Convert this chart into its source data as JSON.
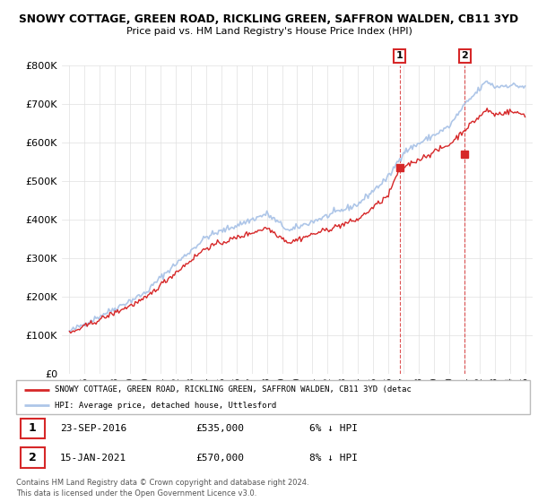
{
  "title1": "SNOWY COTTAGE, GREEN ROAD, RICKLING GREEN, SAFFRON WALDEN, CB11 3YD",
  "title2": "Price paid vs. HM Land Registry's House Price Index (HPI)",
  "ytick_values": [
    0,
    100000,
    200000,
    300000,
    400000,
    500000,
    600000,
    700000,
    800000
  ],
  "ylim": [
    0,
    800000
  ],
  "hpi_color": "#aec6e8",
  "price_color": "#d62728",
  "marker1_price": 535000,
  "marker2_price": 570000,
  "sale1_year": 2016.75,
  "sale2_year": 2021.04,
  "legend_line1": "SNOWY COTTAGE, GREEN ROAD, RICKLING GREEN, SAFFRON WALDEN, CB11 3YD (detac",
  "legend_line2": "HPI: Average price, detached house, Uttlesford",
  "annotation1_label": "1",
  "annotation1_date": "23-SEP-2016",
  "annotation1_price": "£535,000",
  "annotation1_hpi": "6% ↓ HPI",
  "annotation2_label": "2",
  "annotation2_date": "15-JAN-2021",
  "annotation2_price": "£570,000",
  "annotation2_hpi": "8% ↓ HPI",
  "footer": "Contains HM Land Registry data © Crown copyright and database right 2024.\nThis data is licensed under the Open Government Licence v3.0.",
  "xlim_left": 1994.5,
  "xlim_right": 2025.5
}
